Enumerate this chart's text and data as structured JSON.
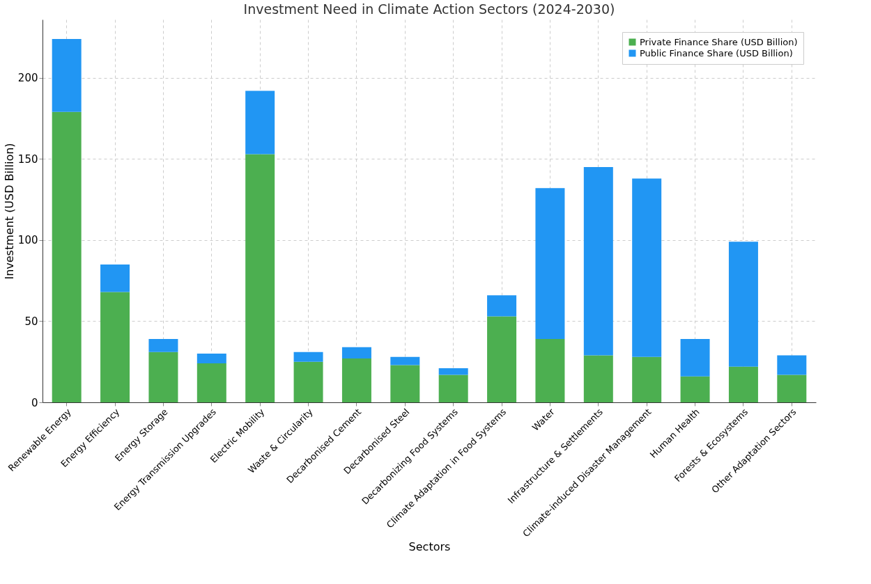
{
  "chart_data": {
    "type": "bar",
    "title": "Investment Need in Climate Action Sectors (2024-2030)",
    "xlabel": "Sectors",
    "ylabel": "Investment (USD Billion)",
    "categories": [
      "Renewable Energy",
      "Energy Efficiency",
      "Energy Storage",
      "Energy Transmission Upgrades",
      "Electric Mobility",
      "Waste & Circularity",
      "Decarbonised Cement",
      "Decarbonised Steel",
      "Decarbonizing Food Systems",
      "Climate Adaptation in Food Systems",
      "Water",
      "Infrastructure & Settlements",
      "Climate-induced Disaster Management",
      "Human Health",
      "Forests & Ecosystems",
      "Other Adaptation Sectors"
    ],
    "stacked": true,
    "series": [
      {
        "name": "Private Finance Share (USD Billion)",
        "color": "#4caf50",
        "values": [
          179,
          68,
          31,
          24,
          153,
          25,
          27,
          23,
          17,
          53,
          39,
          29,
          28,
          16,
          22,
          17
        ]
      },
      {
        "name": "Public Finance Share (USD Billion)",
        "color": "#2196f3",
        "values": [
          45,
          17,
          8,
          6,
          39,
          6,
          7,
          5,
          4,
          13,
          93,
          116,
          110,
          23,
          77,
          12
        ]
      }
    ],
    "ylim": [
      0,
      236
    ],
    "yticks": [
      0,
      50,
      100,
      150,
      200
    ],
    "grid": true,
    "legend": "top right"
  }
}
